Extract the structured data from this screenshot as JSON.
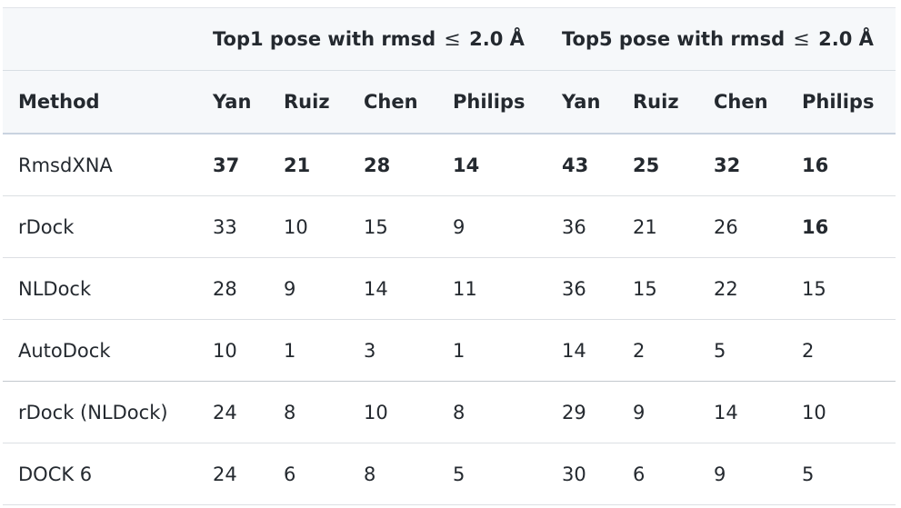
{
  "table": {
    "header_groups": [
      {
        "label_prefix": "Top1 pose with rmsd",
        "symbol": "≤",
        "label_suffix": "2.0 Å"
      },
      {
        "label_prefix": "Top5 pose with rmsd",
        "symbol": "≤",
        "label_suffix": "2.0 Å"
      }
    ],
    "columns": [
      "Method",
      "Yan",
      "Ruiz",
      "Chen",
      "Philips",
      "Yan",
      "Ruiz",
      "Chen",
      "Philips"
    ],
    "rows": [
      {
        "method": "RmsdXNA",
        "values": [
          "37",
          "21",
          "28",
          "14",
          "43",
          "25",
          "32",
          "16"
        ],
        "bold": [
          true,
          true,
          true,
          true,
          true,
          true,
          true,
          true
        ]
      },
      {
        "method": "rDock",
        "values": [
          "33",
          "10",
          "15",
          "9",
          "36",
          "21",
          "26",
          "16"
        ],
        "bold": [
          false,
          false,
          false,
          false,
          false,
          false,
          false,
          true
        ]
      },
      {
        "method": "NLDock",
        "values": [
          "28",
          "9",
          "14",
          "11",
          "36",
          "15",
          "22",
          "15"
        ],
        "bold": [
          false,
          false,
          false,
          false,
          false,
          false,
          false,
          false
        ]
      },
      {
        "method": "AutoDock",
        "values": [
          "10",
          "1",
          "3",
          "1",
          "14",
          "2",
          "5",
          "2"
        ],
        "bold": [
          false,
          false,
          false,
          false,
          false,
          false,
          false,
          false
        ]
      },
      {
        "method": "rDock (NLDock)",
        "values": [
          "24",
          "8",
          "10",
          "8",
          "29",
          "9",
          "14",
          "10"
        ],
        "bold": [
          false,
          false,
          false,
          false,
          false,
          false,
          false,
          false
        ]
      },
      {
        "method": "DOCK 6",
        "values": [
          "24",
          "6",
          "8",
          "5",
          "30",
          "6",
          "9",
          "5"
        ],
        "bold": [
          false,
          false,
          false,
          false,
          false,
          false,
          false,
          false
        ]
      }
    ]
  }
}
